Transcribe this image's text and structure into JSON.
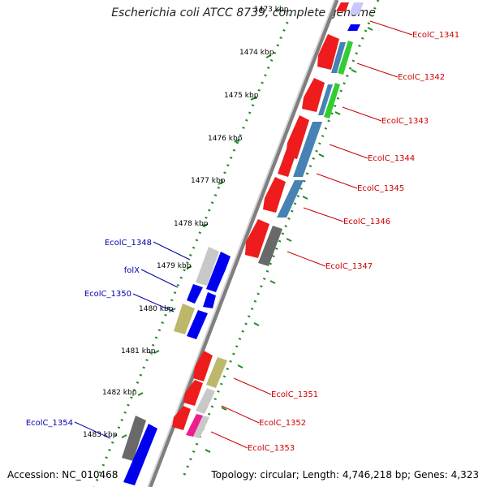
{
  "title": "Escherichia coli ATCC 8739, complete genome",
  "footer": {
    "accession": "Accession: NC_010468",
    "summary": "Topology: circular; Length: 4,746,218 bp; Genes: 4,323"
  },
  "colors": {
    "backbone": "#7f7f7f",
    "reverse_label": "#cc0000",
    "forward_label": "#0000aa",
    "tick": "#228b22"
  },
  "scale": {
    "ticks": [
      "1473 kbp",
      "1474 kbp",
      "1475 kbp",
      "1476 kbp",
      "1477 kbp",
      "1478 kbp",
      "1479 kbp",
      "1480 kbp",
      "1481 kbp",
      "1482 kbp",
      "1483 kbp"
    ]
  },
  "reverse_genes": [
    {
      "label": "EcolC_1341",
      "color": "red"
    },
    {
      "label": "EcolC_1342",
      "color": "red"
    },
    {
      "label": "EcolC_1343",
      "color": "red"
    },
    {
      "label": "EcolC_1344",
      "color": "red"
    },
    {
      "label": "EcolC_1345",
      "color": "red"
    },
    {
      "label": "EcolC_1346",
      "color": "red"
    },
    {
      "label": "EcolC_1347",
      "color": "red"
    },
    {
      "label": "EcolC_1351",
      "color": "red"
    },
    {
      "label": "EcolC_1352",
      "color": "red"
    },
    {
      "label": "EcolC_1353",
      "color": "red"
    }
  ],
  "forward_genes": [
    {
      "label": "EcolC_1348",
      "color": "blue"
    },
    {
      "label": "folX",
      "color": "blue"
    },
    {
      "label": "EcolC_1350",
      "color": "blue"
    },
    {
      "label": "EcolC_1354",
      "color": "blue"
    }
  ]
}
